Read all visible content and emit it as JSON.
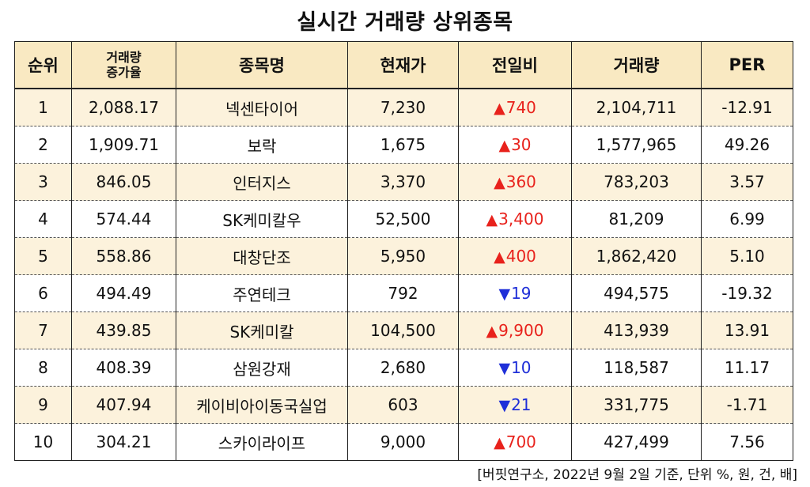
{
  "title": "실시간 거래량 상위종목",
  "table": {
    "headers": {
      "rank": "순위",
      "increase_line1": "거래량",
      "increase_line2": "증가율",
      "name": "종목명",
      "price": "현재가",
      "change": "전일비",
      "volume": "거래량",
      "per": "PER"
    },
    "rows": [
      {
        "rank": "1",
        "increase": "2,088.17",
        "name": "넥센타이어",
        "price": "7,230",
        "direction": "up",
        "arrow": "▲",
        "change": "740",
        "volume": "2,104,711",
        "per": "-12.91"
      },
      {
        "rank": "2",
        "increase": "1,909.71",
        "name": "보락",
        "price": "1,675",
        "direction": "up",
        "arrow": "▲",
        "change": "30",
        "volume": "1,577,965",
        "per": "49.26"
      },
      {
        "rank": "3",
        "increase": "846.05",
        "name": "인터지스",
        "price": "3,370",
        "direction": "up",
        "arrow": "▲",
        "change": "360",
        "volume": "783,203",
        "per": "3.57"
      },
      {
        "rank": "4",
        "increase": "574.44",
        "name": "SK케미칼우",
        "price": "52,500",
        "direction": "up",
        "arrow": "▲",
        "change": "3,400",
        "volume": "81,209",
        "per": "6.99"
      },
      {
        "rank": "5",
        "increase": "558.86",
        "name": "대창단조",
        "price": "5,950",
        "direction": "up",
        "arrow": "▲",
        "change": "400",
        "volume": "1,862,420",
        "per": "5.10"
      },
      {
        "rank": "6",
        "increase": "494.49",
        "name": "주연테크",
        "price": "792",
        "direction": "down",
        "arrow": "▼",
        "change": "19",
        "volume": "494,575",
        "per": "-19.32"
      },
      {
        "rank": "7",
        "increase": "439.85",
        "name": "SK케미칼",
        "price": "104,500",
        "direction": "up",
        "arrow": "▲",
        "change": "9,900",
        "volume": "413,939",
        "per": "13.91"
      },
      {
        "rank": "8",
        "increase": "408.39",
        "name": "삼원강재",
        "price": "2,680",
        "direction": "down",
        "arrow": "▼",
        "change": "10",
        "volume": "118,587",
        "per": "11.17"
      },
      {
        "rank": "9",
        "increase": "407.94",
        "name": "케이비아이동국실업",
        "price": "603",
        "direction": "down",
        "arrow": "▼",
        "change": "21",
        "volume": "331,775",
        "per": "-1.71"
      },
      {
        "rank": "10",
        "increase": "304.21",
        "name": "스카이라이프",
        "price": "9,000",
        "direction": "up",
        "arrow": "▲",
        "change": "700",
        "volume": "427,499",
        "per": "7.56"
      }
    ]
  },
  "source": "[버핏연구소, 2022년 9월 2일 기준, 단위 %, 원, 건, 배]",
  "colors": {
    "header_bg": "#f9e9c2",
    "odd_row_bg": "#fcf2dc",
    "even_row_bg": "#ffffff",
    "up": "#e8221c",
    "down": "#1f2fd8",
    "border": "#222222"
  }
}
